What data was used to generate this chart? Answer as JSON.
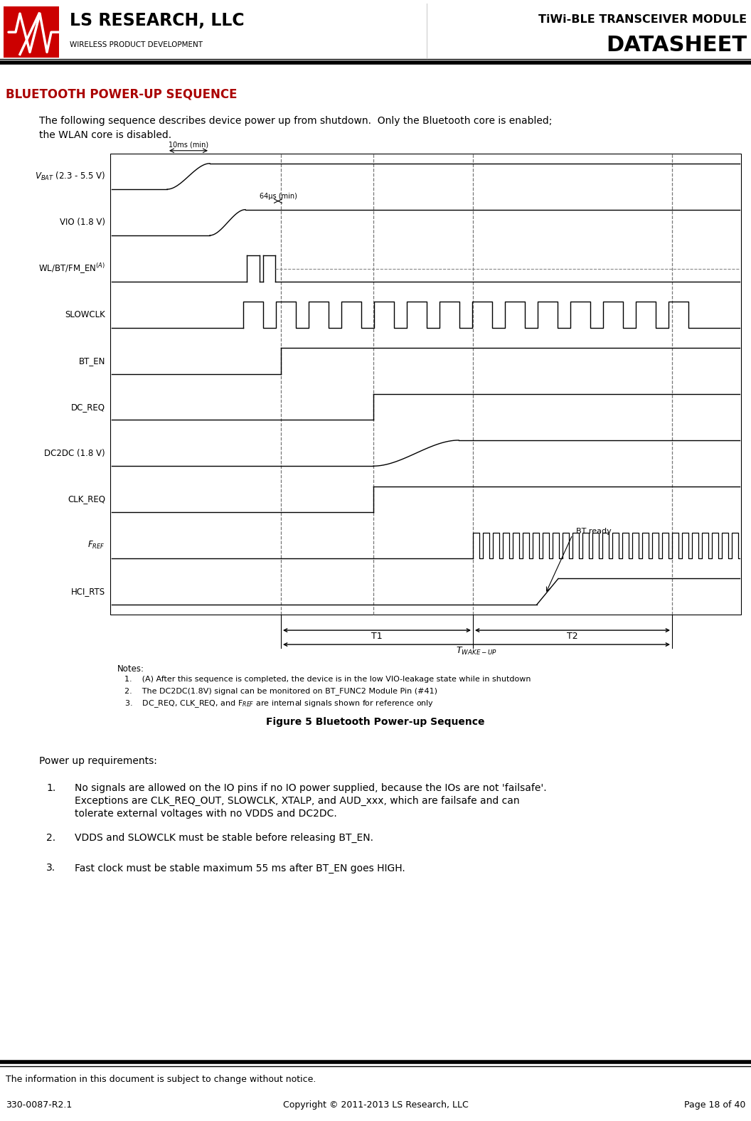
{
  "page_title_line1": "TiWi-BLE TRANSCEIVER MODULE",
  "page_title_line2": "DATASHEET",
  "company_name": "LS RESEARCH, LLC",
  "company_subtitle": "WIRELESS PRODUCT DEVELOPMENT",
  "section_title": "BLUETOOTH POWER-UP SEQUENCE",
  "intro_line1": "The following sequence describes device power up from shutdown.  Only the Bluetooth core is enabled;",
  "intro_line2": "the WLAN core is disabled.",
  "figure_caption": "Figure 5 Bluetooth Power-up Sequence",
  "notes_title": "Notes:",
  "note1": "(A) After this sequence is completed, the device is in the low VIO-leakage state while in shutdown",
  "note2": "The DC2DC(1.8V) signal can be monitored on BT_FUNC2 Module Pin (#41)",
  "note3": "DC_REQ, CLK_REQ, and F",
  "note3_sub": "REF",
  "note3_end": " are internal signals shown for reference only",
  "power_up_title": "Power up requirements:",
  "pur1": "No signals are allowed on the IO pins if no IO power supplied, because the IOs are not 'failsafe'.",
  "pur1b": "Exceptions are CLK_REQ_OUT, SLOWCLK, XTALP, and AUD_xxx, which are failsafe and can",
  "pur1c": "tolerate external voltages with no VDDS and DC2DC.",
  "pur2": "VDDS and SLOWCLK must be stable before releasing BT_EN.",
  "pur3": "Fast clock must be stable maximum 55 ms after BT_EN goes HIGH.",
  "footer_left": "330-0087-R2.1",
  "footer_center": "Copyright © 2011-2013 LS Research, LLC",
  "footer_right": "Page 18 of 40",
  "footer_info": "The information in this document is subject to change without notice.",
  "bg_color": "#ffffff",
  "section_color": "#aa0000",
  "header_sep_thick": 4.0,
  "header_sep_thin": 1.0
}
